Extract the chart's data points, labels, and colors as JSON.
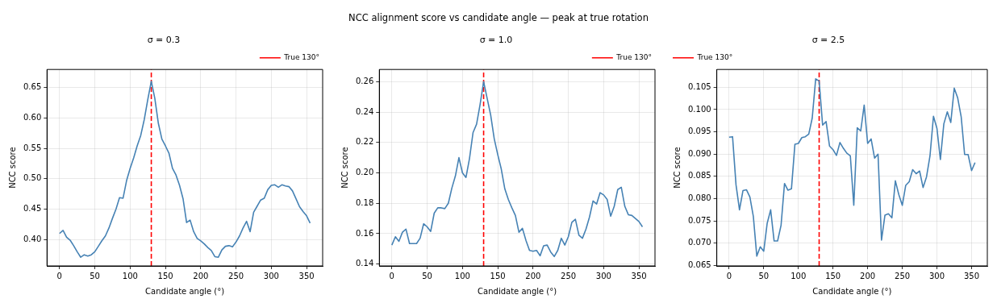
{
  "chart_data": [
    {
      "type": "line",
      "title": "σ = 0.3",
      "xlabel": "Candidate angle (°)",
      "ylabel": "NCC score",
      "annotations": [
        "NCC alignment score vs candidate angle — peak at true rotation"
      ],
      "x": [
        0,
        5,
        10,
        15,
        20,
        25,
        30,
        35,
        40,
        45,
        50,
        55,
        60,
        65,
        70,
        75,
        80,
        85,
        90,
        95,
        100,
        105,
        110,
        115,
        120,
        125,
        130,
        135,
        140,
        145,
        150,
        155,
        160,
        165,
        170,
        175,
        180,
        185,
        190,
        195,
        200,
        205,
        210,
        215,
        220,
        225,
        230,
        235,
        240,
        245,
        250,
        255,
        260,
        265,
        270,
        275,
        280,
        285,
        290,
        295,
        300,
        305,
        310,
        315,
        320,
        325,
        330,
        335,
        340,
        345,
        350,
        355
      ],
      "series": [
        {
          "color": "#4682b4",
          "values": [
            0.41,
            0.415,
            0.404,
            0.399,
            0.39,
            0.38,
            0.371,
            0.375,
            0.373,
            0.375,
            0.38,
            0.389,
            0.398,
            0.406,
            0.419,
            0.435,
            0.45,
            0.469,
            0.468,
            0.497,
            0.517,
            0.534,
            0.554,
            0.571,
            0.597,
            0.63,
            0.66,
            0.632,
            0.591,
            0.565,
            0.554,
            0.542,
            0.517,
            0.506,
            0.489,
            0.467,
            0.428,
            0.432,
            0.413,
            0.402,
            0.398,
            0.393,
            0.387,
            0.382,
            0.372,
            0.371,
            0.383,
            0.389,
            0.39,
            0.388,
            0.396,
            0.406,
            0.419,
            0.43,
            0.413,
            0.445,
            0.455,
            0.465,
            0.468,
            0.482,
            0.489,
            0.49,
            0.486,
            0.49,
            0.488,
            0.487,
            0.48,
            0.467,
            0.454,
            0.446,
            0.439,
            0.427
          ]
        }
      ],
      "ref_lines": [
        {
          "axis": "x",
          "value": 130,
          "label": "True 130°",
          "color": "#ff0000",
          "line_style": "dashed"
        }
      ],
      "xlim": [
        -17.75,
        372.75
      ],
      "xticks": [
        0,
        50,
        100,
        150,
        200,
        250,
        300,
        350
      ],
      "ylim": [
        0.3567,
        0.6795
      ],
      "yticks": [
        {
          "value": 0.4,
          "label": "0.40"
        },
        {
          "value": 0.45,
          "label": "0.45"
        },
        {
          "value": 0.5,
          "label": "0.50"
        },
        {
          "value": 0.55,
          "label": "0.55"
        },
        {
          "value": 0.6,
          "label": "0.60"
        },
        {
          "value": 0.65,
          "label": "0.65"
        }
      ],
      "grid": true,
      "legend": "top right"
    },
    {
      "type": "line",
      "title": "σ = 1.0",
      "xlabel": "Candidate angle (°)",
      "ylabel": "NCC score",
      "x": [
        0,
        5,
        10,
        15,
        20,
        25,
        30,
        35,
        40,
        45,
        50,
        55,
        60,
        65,
        70,
        75,
        80,
        85,
        90,
        95,
        100,
        105,
        110,
        115,
        120,
        125,
        130,
        135,
        140,
        145,
        150,
        155,
        160,
        165,
        170,
        175,
        180,
        185,
        190,
        195,
        200,
        205,
        210,
        215,
        220,
        225,
        230,
        235,
        240,
        245,
        250,
        255,
        260,
        265,
        270,
        275,
        280,
        285,
        290,
        295,
        300,
        305,
        310,
        315,
        320,
        325,
        330,
        335,
        340,
        345,
        350,
        355
      ],
      "series": [
        {
          "color": "#4682b4",
          "values": [
            0.1525,
            0.158,
            0.155,
            0.161,
            0.163,
            0.1535,
            0.1535,
            0.1535,
            0.157,
            0.1665,
            0.1645,
            0.1615,
            0.1735,
            0.177,
            0.177,
            0.1765,
            0.18,
            0.19,
            0.198,
            0.21,
            0.2,
            0.197,
            0.2095,
            0.2265,
            0.232,
            0.245,
            0.26,
            0.249,
            0.238,
            0.2225,
            0.212,
            0.2025,
            0.1895,
            0.1825,
            0.177,
            0.172,
            0.161,
            0.1635,
            0.1555,
            0.149,
            0.1485,
            0.149,
            0.1455,
            0.152,
            0.1525,
            0.148,
            0.145,
            0.149,
            0.157,
            0.1525,
            0.158,
            0.1675,
            0.1695,
            0.159,
            0.157,
            0.163,
            0.171,
            0.1815,
            0.1795,
            0.187,
            0.1855,
            0.1825,
            0.1715,
            0.178,
            0.189,
            0.1905,
            0.178,
            0.1725,
            0.172,
            0.17,
            0.168,
            0.1645
          ]
        }
      ],
      "ref_lines": [
        {
          "axis": "x",
          "value": 130,
          "label": "True 130°",
          "color": "#ff0000",
          "line_style": "dashed"
        }
      ],
      "xlim": [
        -17.75,
        372.75
      ],
      "xticks": [
        0,
        50,
        100,
        150,
        200,
        250,
        300,
        350
      ],
      "ylim": [
        0.1388,
        0.268
      ],
      "yticks": [
        {
          "value": 0.14,
          "label": "0.14"
        },
        {
          "value": 0.16,
          "label": "0.16"
        },
        {
          "value": 0.18,
          "label": "0.18"
        },
        {
          "value": 0.2,
          "label": "0.20"
        },
        {
          "value": 0.22,
          "label": "0.22"
        },
        {
          "value": 0.24,
          "label": "0.24"
        },
        {
          "value": 0.26,
          "label": "0.26"
        }
      ],
      "grid": true,
      "legend": "top right"
    },
    {
      "type": "line",
      "title": "σ = 2.5",
      "xlabel": "Candidate angle (°)",
      "ylabel": "NCC score",
      "x": [
        0,
        5,
        10,
        15,
        20,
        25,
        30,
        35,
        40,
        45,
        50,
        55,
        60,
        65,
        70,
        75,
        80,
        85,
        90,
        95,
        100,
        105,
        110,
        115,
        120,
        125,
        130,
        135,
        140,
        145,
        150,
        155,
        160,
        165,
        170,
        175,
        180,
        185,
        190,
        195,
        200,
        205,
        210,
        215,
        220,
        225,
        230,
        235,
        240,
        245,
        250,
        255,
        260,
        265,
        270,
        275,
        280,
        285,
        290,
        295,
        300,
        305,
        310,
        315,
        320,
        325,
        330,
        335,
        340,
        345,
        350,
        355
      ],
      "series": [
        {
          "color": "#4682b4",
          "values": [
            0.0938,
            0.0939,
            0.0831,
            0.0775,
            0.0818,
            0.082,
            0.0804,
            0.076,
            0.0671,
            0.0692,
            0.0682,
            0.0745,
            0.0775,
            0.0705,
            0.0705,
            0.074,
            0.0834,
            0.0819,
            0.0822,
            0.0922,
            0.0924,
            0.0937,
            0.0939,
            0.0945,
            0.0981,
            0.1069,
            0.1064,
            0.0965,
            0.0973,
            0.0918,
            0.091,
            0.0897,
            0.0926,
            0.0913,
            0.0902,
            0.0896,
            0.0785,
            0.0959,
            0.0952,
            0.101,
            0.0924,
            0.0934,
            0.0891,
            0.09,
            0.0707,
            0.0763,
            0.0766,
            0.0757,
            0.084,
            0.0809,
            0.0785,
            0.083,
            0.0838,
            0.0865,
            0.0856,
            0.0862,
            0.0825,
            0.0849,
            0.0896,
            0.0985,
            0.0958,
            0.0888,
            0.0968,
            0.0995,
            0.0971,
            0.1048,
            0.1026,
            0.0984,
            0.0899,
            0.0899,
            0.0863,
            0.0881
          ]
        }
      ],
      "ref_lines": [
        {
          "axis": "x",
          "value": 130,
          "label": "True 130°",
          "color": "#ff0000",
          "line_style": "dashed"
        }
      ],
      "xlim": [
        -17.75,
        372.75
      ],
      "xticks": [
        0,
        50,
        100,
        150,
        200,
        250,
        300,
        350
      ],
      "ylim": [
        0.0649,
        0.109
      ],
      "yticks": [
        {
          "value": 0.065,
          "label": "0.065"
        },
        {
          "value": 0.07,
          "label": "0.070"
        },
        {
          "value": 0.075,
          "label": "0.075"
        },
        {
          "value": 0.08,
          "label": "0.080"
        },
        {
          "value": 0.085,
          "label": "0.085"
        },
        {
          "value": 0.09,
          "label": "0.090"
        },
        {
          "value": 0.095,
          "label": "0.095"
        },
        {
          "value": 0.1,
          "label": "0.100"
        },
        {
          "value": 0.105,
          "label": "0.105"
        }
      ],
      "grid": true,
      "legend": "top left"
    }
  ]
}
